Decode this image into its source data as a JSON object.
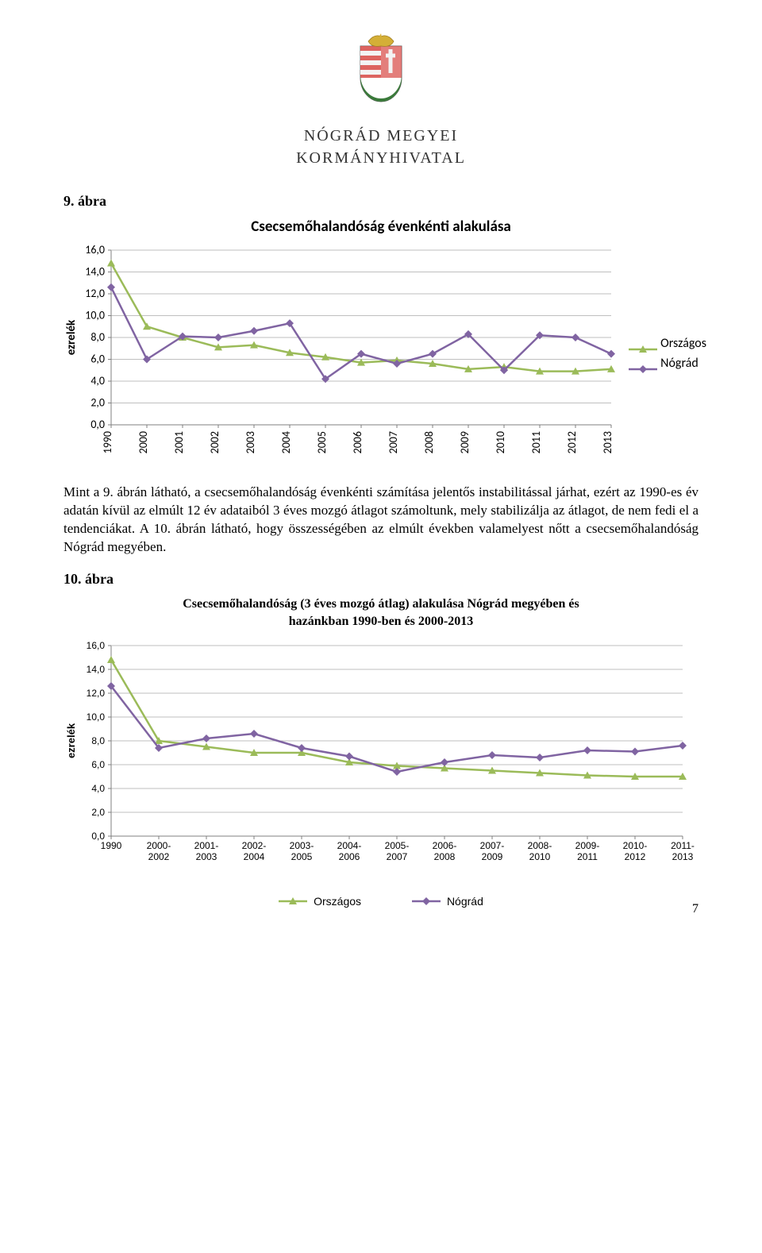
{
  "header": {
    "org_line1": "NÓGRÁD MEGYEI",
    "org_line2": "KORMÁNYHIVATAL"
  },
  "figure9": {
    "label": "9. ábra",
    "title": "Csecsemőhalandóság évenkénti alakulása",
    "y_label": "ezrelék",
    "y_min": 0,
    "y_max": 16,
    "y_step": 2,
    "y_ticks": [
      "0,0",
      "2,0",
      "4,0",
      "6,0",
      "8,0",
      "10,0",
      "12,0",
      "14,0",
      "16,0"
    ],
    "categories": [
      "1990",
      "2000",
      "2001",
      "2002",
      "2003",
      "2004",
      "2005",
      "2006",
      "2007",
      "2008",
      "2009",
      "2010",
      "2011",
      "2012",
      "2013"
    ],
    "series": [
      {
        "name": "Országos",
        "color": "#9bbb59",
        "marker": "triangle",
        "values": [
          14.8,
          9.0,
          8.0,
          7.1,
          7.3,
          6.6,
          6.2,
          5.7,
          5.9,
          5.6,
          5.1,
          5.3,
          4.9,
          4.9,
          5.1
        ]
      },
      {
        "name": "Nógrád",
        "color": "#8064a2",
        "marker": "diamond",
        "values": [
          12.6,
          6.0,
          8.1,
          8.0,
          8.6,
          9.3,
          4.2,
          6.5,
          5.6,
          6.5,
          8.3,
          5.0,
          8.2,
          8.0,
          6.5
        ]
      }
    ],
    "grid_color": "#bfbfbf",
    "axis_color": "#808080",
    "font_family": "Calibri, Arial, sans-serif"
  },
  "paragraph": "Mint a 9. ábrán látható, a csecsemőhalandóság évenkénti számítása jelentős instabilitással járhat, ezért az 1990-es év adatán kívül az elmúlt 12 év adataiból 3 éves mozgó átlagot számoltunk, mely stabilizálja az átlagot, de nem fedi el a tendenciákat. A 10. ábrán látható, hogy összességében az elmúlt években valamelyest nőtt a csecsemőhalandóság Nógrád megyében.",
  "figure10": {
    "label": "10. ábra",
    "title_line1": "Csecsemőhalandóság (3 éves mozgó átlag) alakulása Nógrád megyében és",
    "title_line2": "hazánkban 1990-ben és 2000-2013",
    "y_label": "ezrelék",
    "y_min": 0,
    "y_max": 16,
    "y_step": 2,
    "y_ticks": [
      "0,0",
      "2,0",
      "4,0",
      "6,0",
      "8,0",
      "10,0",
      "12,0",
      "14,0",
      "16,0"
    ],
    "categories_top": [
      "1990",
      "2000-",
      "2001-",
      "2002-",
      "2003-",
      "2004-",
      "2005-",
      "2006-",
      "2007-",
      "2008-",
      "2009-",
      "2010-",
      "2011-"
    ],
    "categories_bot": [
      "",
      "2002",
      "2003",
      "2004",
      "2005",
      "2006",
      "2007",
      "2008",
      "2009",
      "2010",
      "2011",
      "2012",
      "2013"
    ],
    "series": [
      {
        "name": "Országos",
        "color": "#9bbb59",
        "marker": "triangle",
        "values": [
          14.8,
          8.0,
          7.5,
          7.0,
          7.0,
          6.2,
          5.9,
          5.7,
          5.5,
          5.3,
          5.1,
          5.0,
          5.0
        ]
      },
      {
        "name": "Nógrád",
        "color": "#8064a2",
        "marker": "diamond",
        "values": [
          12.6,
          7.4,
          8.2,
          8.6,
          7.4,
          6.7,
          5.4,
          6.2,
          6.8,
          6.6,
          7.2,
          7.1,
          7.6
        ]
      }
    ],
    "grid_color": "#bfbfbf",
    "axis_color": "#808080",
    "font_family": "Arial, sans-serif"
  },
  "legend": {
    "orszagos": "Országos",
    "nograd": "Nógrád"
  },
  "page_number": "7"
}
